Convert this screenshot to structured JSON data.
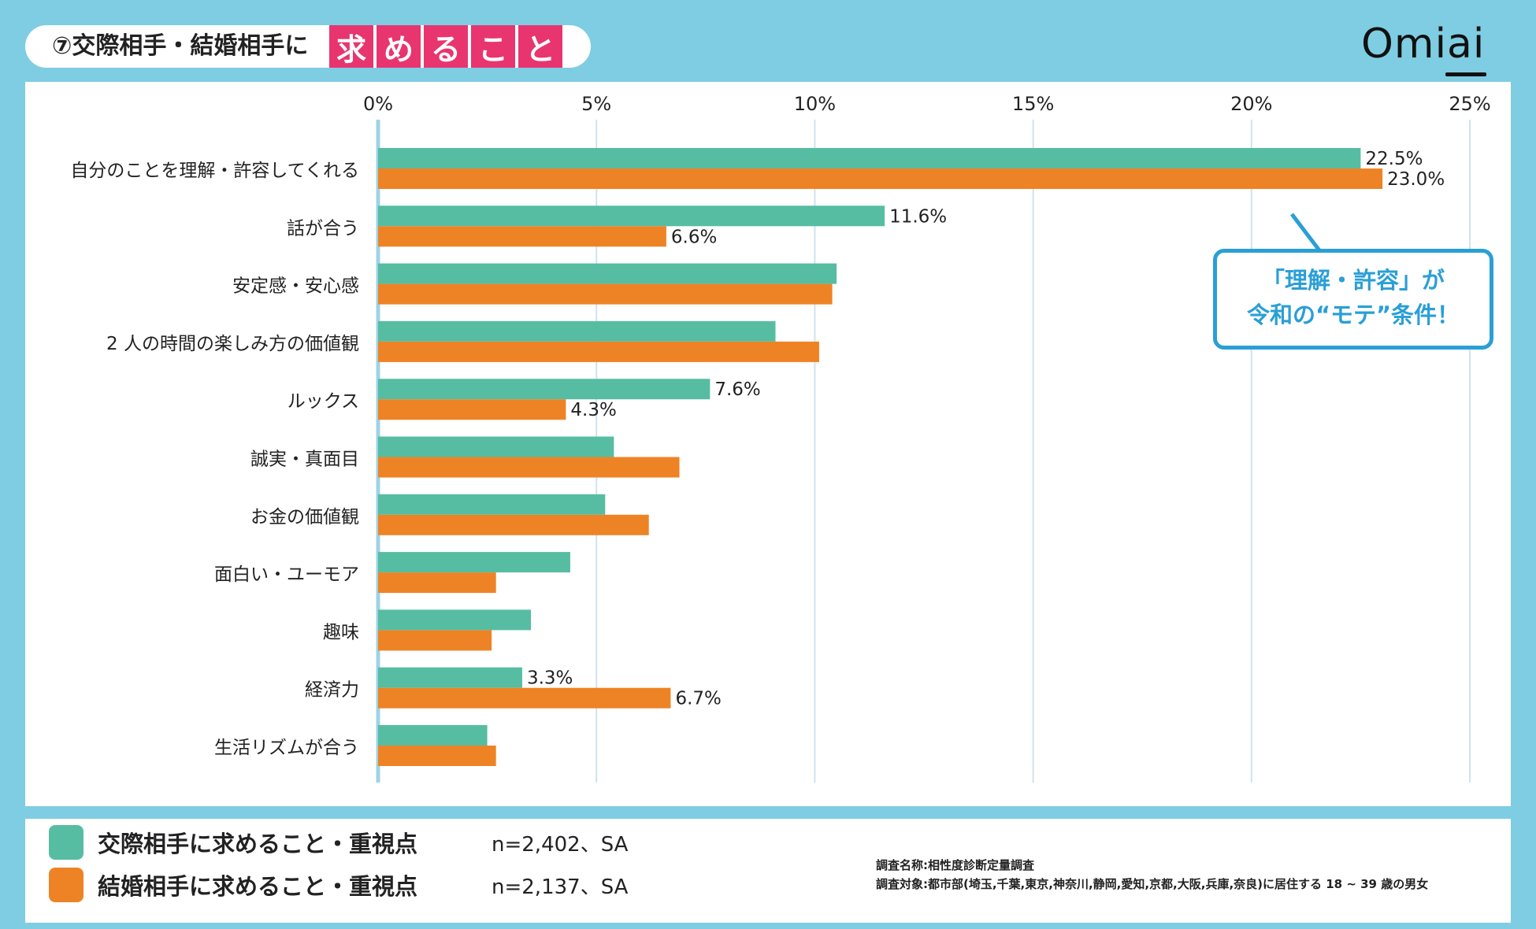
{
  "title": {
    "prefix": "⑦交際相手・結婚相手に",
    "highlight_chars": [
      "求",
      "め",
      "る",
      "こ",
      "と"
    ]
  },
  "logo": "Omiai",
  "colors": {
    "frame": "#7fcde2",
    "series_dating": "#56bda2",
    "series_marriage": "#ee8325",
    "title_highlight": "#e8356f",
    "callout": "#2a9fd6"
  },
  "callout": {
    "line1": "「理解・許容」が",
    "line2": "令和の“モテ”条件！"
  },
  "legend": [
    {
      "label": "交際相手に求めること・重視点",
      "n": "n=2,402、SA",
      "color": "#56bda2"
    },
    {
      "label": "結婚相手に求めること・重視点",
      "n": "n=2,137、SA",
      "color": "#ee8325"
    }
  ],
  "survey": {
    "name": "調査名称:相性度診断定量調査",
    "target": "調査対象:都市部(埼玉,千葉,東京,神奈川,静岡,愛知,京都,大阪,兵庫,奈良)に居住する 18 ~ 39 歳の男女"
  },
  "chart_data": {
    "type": "bar",
    "orientation": "horizontal",
    "xlim": [
      0,
      25
    ],
    "ticks": [
      0,
      5,
      10,
      15,
      20,
      25
    ],
    "tick_labels": [
      "0%",
      "5%",
      "10%",
      "15%",
      "20%",
      "25%"
    ],
    "grid": true,
    "categories": [
      "自分のことを理解・許容してくれる",
      "話が合う",
      "安定感・安心感",
      "2 人の時間の楽しみ方の価値観",
      "ルックス",
      "誠実・真面目",
      "お金の価値観",
      "面白い・ユーモア",
      "趣味",
      "経済力",
      "生活リズムが合う"
    ],
    "series": [
      {
        "name": "交際相手に求めること・重視点",
        "values": [
          22.5,
          11.6,
          10.5,
          9.1,
          7.6,
          5.4,
          5.2,
          4.4,
          3.5,
          3.3,
          2.5
        ],
        "labels": [
          "22.5%",
          "11.6%",
          "",
          "",
          "7.6%",
          "",
          "",
          "",
          "",
          "3.3%",
          ""
        ]
      },
      {
        "name": "結婚相手に求めること・重視点",
        "values": [
          23.0,
          6.6,
          10.4,
          10.1,
          4.3,
          6.9,
          6.2,
          2.7,
          2.6,
          6.7,
          2.7
        ],
        "labels": [
          "23.0%",
          "6.6%",
          "",
          "",
          "4.3%",
          "",
          "",
          "",
          "",
          "6.7%",
          ""
        ]
      }
    ]
  }
}
